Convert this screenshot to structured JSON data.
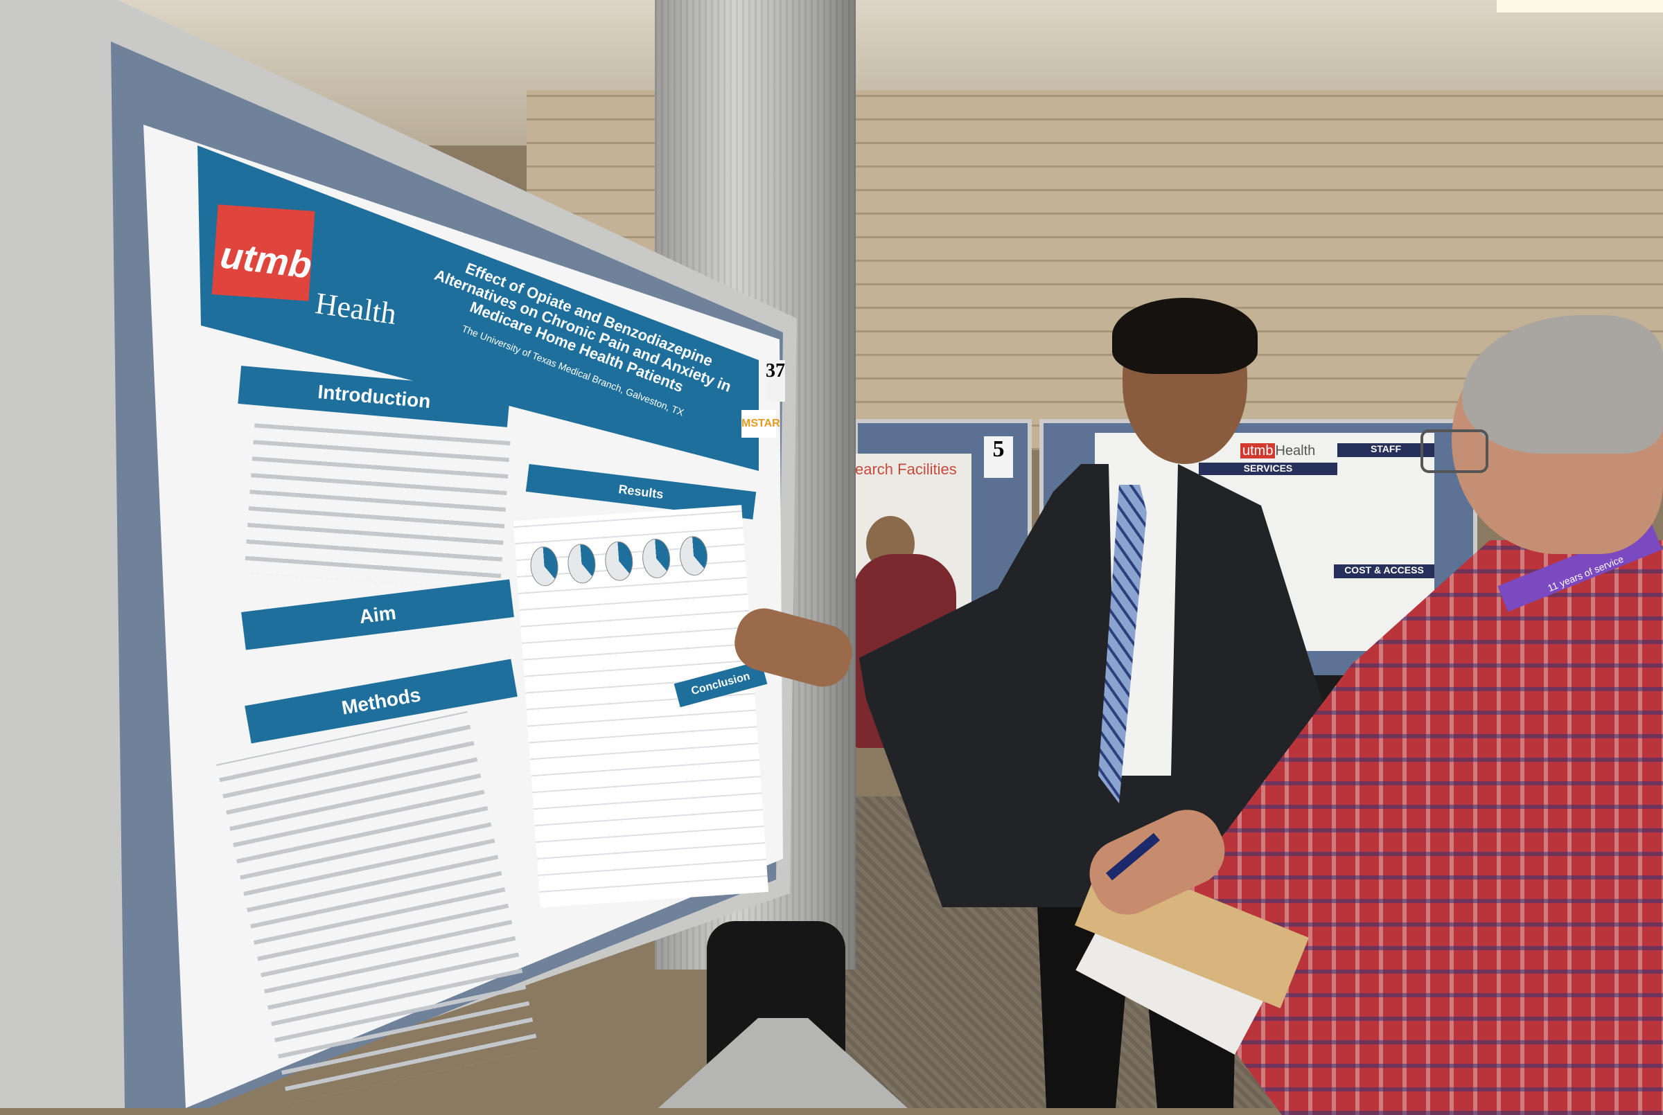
{
  "scene": {
    "description_tag": "poster-session-photo"
  },
  "poster": {
    "logo_mark": "utmb",
    "logo_word": "Health",
    "title": "Effect of Opiate and Benzodiazepine Alternatives on Chronic Pain and Anxiety in Medicare Home Health Patients",
    "affiliation": "The University of Texas Medical Branch, Galveston, TX",
    "sections": {
      "introduction": "Introduction",
      "results": "Results",
      "aim": "Aim",
      "methods": "Methods",
      "conclusion": "Conclusion"
    },
    "board_number": "37",
    "sponsor_badge": "MSTAR",
    "colors": {
      "header": "#1f6f9c",
      "logo": "#e0453d"
    }
  },
  "background_posters": {
    "left": {
      "board_number": "5",
      "title_fragment": "earch Facilities"
    },
    "right": {
      "logo_mark": "utmb",
      "logo_word": "Health",
      "services": "SERVICES",
      "staff": "STAFF",
      "cost_access": "COST & ACCESS"
    }
  },
  "lanyard_text": "11 years of service"
}
